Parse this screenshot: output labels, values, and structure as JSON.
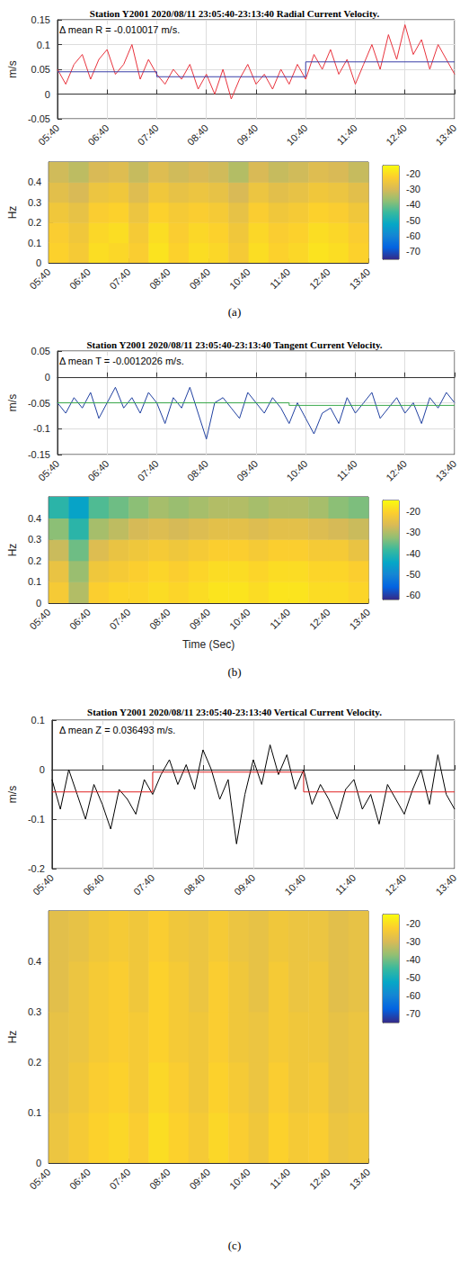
{
  "chart_data": [
    {
      "type": "line",
      "title": "Station Y2001 2020/08/11 23:05:40-23:13:40 Radial Current Velocity.",
      "annotation": "Δ mean R = -0.010017 m/s.",
      "ylabel": "m/s",
      "grid": true,
      "xlim": [
        0,
        480
      ],
      "xticks": [
        {
          "value": 0,
          "label": "05:40"
        },
        {
          "value": 60,
          "label": "06:40"
        },
        {
          "value": 120,
          "label": "07:40"
        },
        {
          "value": 180,
          "label": "08:40"
        },
        {
          "value": 240,
          "label": "09:40"
        },
        {
          "value": 300,
          "label": "10:40"
        },
        {
          "value": 360,
          "label": "11:40"
        },
        {
          "value": 420,
          "label": "12:40"
        },
        {
          "value": 480,
          "label": "13:40"
        }
      ],
      "ylim": [
        -0.05,
        0.15
      ],
      "yticks": [
        -0.05,
        0,
        0.05,
        0.1,
        0.15
      ],
      "series": [
        {
          "color": "#e8323c",
          "x": [
            0,
            10,
            20,
            30,
            40,
            50,
            60,
            70,
            80,
            90,
            100,
            110,
            120,
            130,
            140,
            150,
            160,
            170,
            180,
            190,
            200,
            210,
            220,
            230,
            240,
            250,
            260,
            270,
            280,
            290,
            300,
            310,
            320,
            330,
            340,
            350,
            360,
            370,
            380,
            390,
            400,
            410,
            420,
            430,
            440,
            450,
            460,
            470,
            480
          ],
          "values": [
            0.05,
            0.02,
            0.06,
            0.08,
            0.03,
            0.07,
            0.09,
            0.04,
            0.06,
            0.1,
            0.03,
            0.07,
            0.04,
            0.02,
            0.05,
            0.03,
            0.06,
            0.01,
            0.04,
            0,
            0.05,
            -0.01,
            0.03,
            0.06,
            0.02,
            0.04,
            0.01,
            0.05,
            0.02,
            0.06,
            0.03,
            0.08,
            0.05,
            0.09,
            0.04,
            0.07,
            0.02,
            0.06,
            0.1,
            0.05,
            0.12,
            0.07,
            0.14,
            0.08,
            0.11,
            0.05,
            0.1,
            0.07,
            0.04
          ]
        },
        {
          "color": "#3a3fa8",
          "x": [
            0,
            120,
            120,
            300,
            300,
            480
          ],
          "values": [
            0.045,
            0.045,
            0.035,
            0.035,
            0.065,
            0.065
          ]
        }
      ]
    },
    {
      "type": "heatmap",
      "ylabel": "Hz",
      "caption": "(a)",
      "xlim": [
        0,
        480
      ],
      "xticks": [
        {
          "value": 0,
          "label": "05:40"
        },
        {
          "value": 60,
          "label": "06:40"
        },
        {
          "value": 120,
          "label": "07:40"
        },
        {
          "value": 180,
          "label": "08:40"
        },
        {
          "value": 240,
          "label": "09:40"
        },
        {
          "value": 300,
          "label": "10:40"
        },
        {
          "value": 360,
          "label": "11:40"
        },
        {
          "value": 420,
          "label": "12:40"
        },
        {
          "value": 480,
          "label": "13:40"
        }
      ],
      "ylim": [
        0,
        0.5
      ],
      "yticks": [
        0,
        0.1,
        0.2,
        0.3,
        0.4
      ],
      "x_edges": [
        0,
        30,
        60,
        90,
        120,
        150,
        180,
        210,
        240,
        270,
        300,
        330,
        360,
        390,
        420,
        450,
        480
      ],
      "y_edges": [
        0,
        0.1,
        0.2,
        0.3,
        0.4,
        0.5
      ],
      "cells": [
        [
          -22,
          -24,
          -20,
          -21,
          -23,
          -19,
          -22,
          -20,
          -21,
          -24,
          -20,
          -22,
          -21,
          -19,
          -20,
          -22
        ],
        [
          -23,
          -25,
          -21,
          -20,
          -24,
          -20,
          -23,
          -21,
          -22,
          -25,
          -21,
          -23,
          -22,
          -20,
          -21,
          -23
        ],
        [
          -25,
          -27,
          -23,
          -22,
          -26,
          -22,
          -24,
          -23,
          -24,
          -27,
          -23,
          -25,
          -24,
          -22,
          -23,
          -25
        ],
        [
          -28,
          -30,
          -26,
          -25,
          -29,
          -25,
          -27,
          -26,
          -27,
          -30,
          -26,
          -28,
          -27,
          -25,
          -26,
          -28
        ],
        [
          -31,
          -33,
          -30,
          -29,
          -32,
          -29,
          -31,
          -30,
          -31,
          -34,
          -30,
          -32,
          -31,
          -29,
          -30,
          -32
        ]
      ],
      "colorbar": {
        "range": [
          -75,
          -15
        ],
        "ticks": [
          -70,
          -60,
          -50,
          -40,
          -30,
          -20
        ]
      }
    },
    {
      "type": "line",
      "title": "Station Y2001 2020/08/11 23:05:40-23:13:40 Tangent Current Velocity.",
      "annotation": "Δ mean T = -0.0012026 m/s.",
      "ylabel": "m/s",
      "grid": true,
      "xlim": [
        0,
        480
      ],
      "xticks": [
        {
          "value": 0,
          "label": "05:40"
        },
        {
          "value": 60,
          "label": "06:40"
        },
        {
          "value": 120,
          "label": "07:40"
        },
        {
          "value": 180,
          "label": "08:40"
        },
        {
          "value": 240,
          "label": "09:40"
        },
        {
          "value": 300,
          "label": "10:40"
        },
        {
          "value": 360,
          "label": "11:40"
        },
        {
          "value": 420,
          "label": "12:40"
        },
        {
          "value": 480,
          "label": "13:40"
        }
      ],
      "ylim": [
        -0.15,
        0.05
      ],
      "yticks": [
        -0.15,
        -0.1,
        -0.05,
        0,
        0.05
      ],
      "series": [
        {
          "color": "#2040a0",
          "x": [
            0,
            10,
            20,
            30,
            40,
            50,
            60,
            70,
            80,
            90,
            100,
            110,
            120,
            130,
            140,
            150,
            160,
            170,
            180,
            190,
            200,
            210,
            220,
            230,
            240,
            250,
            260,
            270,
            280,
            290,
            300,
            310,
            320,
            330,
            340,
            350,
            360,
            370,
            380,
            390,
            400,
            410,
            420,
            430,
            440,
            450,
            460,
            470,
            480
          ],
          "values": [
            -0.05,
            -0.07,
            -0.04,
            -0.06,
            -0.03,
            -0.08,
            -0.05,
            -0.02,
            -0.06,
            -0.04,
            -0.07,
            -0.03,
            -0.05,
            -0.09,
            -0.04,
            -0.06,
            -0.02,
            -0.07,
            -0.12,
            -0.05,
            -0.04,
            -0.06,
            -0.08,
            -0.03,
            -0.05,
            -0.07,
            -0.04,
            -0.06,
            -0.09,
            -0.05,
            -0.08,
            -0.11,
            -0.07,
            -0.06,
            -0.09,
            -0.04,
            -0.07,
            -0.05,
            -0.03,
            -0.08,
            -0.06,
            -0.04,
            -0.07,
            -0.05,
            -0.09,
            -0.04,
            -0.06,
            -0.03,
            -0.05
          ]
        },
        {
          "color": "#3aa84a",
          "x": [
            0,
            280,
            280,
            480
          ],
          "values": [
            -0.05,
            -0.05,
            -0.055,
            -0.055
          ]
        }
      ]
    },
    {
      "type": "heatmap",
      "ylabel": "Hz",
      "xlabel": "Time (Sec)",
      "caption": "(b)",
      "xlim": [
        0,
        480
      ],
      "xticks": [
        {
          "value": 0,
          "label": "05:40"
        },
        {
          "value": 60,
          "label": "06:40"
        },
        {
          "value": 120,
          "label": "07:40"
        },
        {
          "value": 180,
          "label": "08:40"
        },
        {
          "value": 240,
          "label": "09:40"
        },
        {
          "value": 300,
          "label": "10:40"
        },
        {
          "value": 360,
          "label": "11:40"
        },
        {
          "value": 420,
          "label": "12:40"
        },
        {
          "value": 480,
          "label": "13:40"
        }
      ],
      "ylim": [
        0,
        0.5
      ],
      "yticks": [
        0,
        0.1,
        0.2,
        0.3,
        0.4
      ],
      "x_edges": [
        0,
        30,
        60,
        90,
        120,
        150,
        180,
        210,
        240,
        270,
        300,
        330,
        360,
        390,
        420,
        450,
        480
      ],
      "y_edges": [
        0,
        0.1,
        0.2,
        0.3,
        0.4,
        0.5
      ],
      "cells": [
        [
          -22,
          -30,
          -21,
          -20,
          -20,
          -19,
          -20,
          -19,
          -18,
          -18,
          -19,
          -18,
          -18,
          -19,
          -19,
          -20
        ],
        [
          -24,
          -32,
          -23,
          -22,
          -21,
          -20,
          -21,
          -20,
          -19,
          -19,
          -20,
          -19,
          -19,
          -20,
          -20,
          -21
        ],
        [
          -28,
          -35,
          -26,
          -24,
          -23,
          -22,
          -23,
          -22,
          -21,
          -21,
          -22,
          -21,
          -21,
          -22,
          -22,
          -24
        ],
        [
          -33,
          -40,
          -31,
          -29,
          -27,
          -26,
          -27,
          -26,
          -25,
          -25,
          -26,
          -25,
          -25,
          -26,
          -27,
          -28
        ],
        [
          -40,
          -45,
          -37,
          -35,
          -33,
          -31,
          -32,
          -31,
          -30,
          -30,
          -31,
          -30,
          -30,
          -31,
          -33,
          -34
        ]
      ],
      "colorbar": {
        "range": [
          -62,
          -15
        ],
        "ticks": [
          -60,
          -50,
          -40,
          -30,
          -20
        ]
      }
    },
    {
      "type": "line",
      "title": "Station Y2001 2020/08/11 23:05:40-23:13:40 Vertical Current Velocity.",
      "annotation": "Δ mean Z = 0.036493 m/s.",
      "ylabel": "m/s",
      "grid": true,
      "xlim": [
        0,
        480
      ],
      "xticks": [
        {
          "value": 0,
          "label": "05:40"
        },
        {
          "value": 60,
          "label": "06:40"
        },
        {
          "value": 120,
          "label": "07:40"
        },
        {
          "value": 180,
          "label": "08:40"
        },
        {
          "value": 240,
          "label": "09:40"
        },
        {
          "value": 300,
          "label": "10:40"
        },
        {
          "value": 360,
          "label": "11:40"
        },
        {
          "value": 420,
          "label": "12:40"
        },
        {
          "value": 480,
          "label": "13:40"
        }
      ],
      "ylim": [
        -0.2,
        0.1
      ],
      "yticks": [
        -0.2,
        -0.1,
        0,
        0.1
      ],
      "series": [
        {
          "color": "#000000",
          "x": [
            0,
            10,
            20,
            30,
            40,
            50,
            60,
            70,
            80,
            90,
            100,
            110,
            120,
            130,
            140,
            150,
            160,
            170,
            180,
            190,
            200,
            210,
            220,
            230,
            240,
            250,
            260,
            270,
            280,
            290,
            300,
            310,
            320,
            330,
            340,
            350,
            360,
            370,
            380,
            390,
            400,
            410,
            420,
            430,
            440,
            450,
            460,
            470,
            480
          ],
          "values": [
            -0.02,
            -0.08,
            0,
            -0.05,
            -0.1,
            -0.03,
            -0.07,
            -0.12,
            -0.04,
            -0.06,
            -0.09,
            -0.02,
            -0.05,
            -0.01,
            0.02,
            -0.03,
            0.01,
            -0.04,
            0.04,
            0,
            -0.06,
            -0.02,
            -0.15,
            -0.05,
            0.02,
            -0.03,
            0.05,
            -0.01,
            0.03,
            -0.04,
            0,
            -0.07,
            -0.03,
            -0.06,
            -0.1,
            -0.04,
            -0.02,
            -0.08,
            -0.05,
            -0.11,
            -0.03,
            -0.06,
            -0.09,
            -0.04,
            0,
            -0.07,
            0.03,
            -0.05,
            -0.08
          ]
        },
        {
          "color": "#e02020",
          "x": [
            0,
            120,
            120,
            300,
            300,
            480
          ],
          "values": [
            -0.045,
            -0.045,
            -0.005,
            -0.005,
            -0.045,
            -0.045
          ]
        }
      ]
    },
    {
      "type": "heatmap",
      "ylabel": "Hz",
      "caption": "(c)",
      "xlim": [
        0,
        480
      ],
      "xticks": [
        {
          "value": 0,
          "label": "05:40"
        },
        {
          "value": 60,
          "label": "06:40"
        },
        {
          "value": 120,
          "label": "07:40"
        },
        {
          "value": 180,
          "label": "08:40"
        },
        {
          "value": 240,
          "label": "09:40"
        },
        {
          "value": 300,
          "label": "10:40"
        },
        {
          "value": 360,
          "label": "11:40"
        },
        {
          "value": 420,
          "label": "12:40"
        },
        {
          "value": 480,
          "label": "13:40"
        }
      ],
      "ylim": [
        0,
        0.5
      ],
      "yticks": [
        0,
        0.1,
        0.2,
        0.3,
        0.4
      ],
      "x_edges": [
        0,
        30,
        60,
        90,
        120,
        150,
        180,
        210,
        240,
        270,
        300,
        330,
        360,
        390,
        420,
        450,
        480
      ],
      "y_edges": [
        0,
        0.1,
        0.2,
        0.3,
        0.4,
        0.5
      ],
      "cells": [
        [
          -26,
          -24,
          -22,
          -21,
          -23,
          -20,
          -22,
          -24,
          -21,
          -23,
          -25,
          -22,
          -24,
          -23,
          -26,
          -25
        ],
        [
          -27,
          -25,
          -23,
          -22,
          -24,
          -21,
          -23,
          -25,
          -22,
          -24,
          -26,
          -23,
          -25,
          -24,
          -27,
          -26
        ],
        [
          -27,
          -26,
          -24,
          -23,
          -24,
          -22,
          -24,
          -25,
          -23,
          -25,
          -26,
          -24,
          -25,
          -25,
          -27,
          -26
        ],
        [
          -28,
          -26,
          -24,
          -23,
          -25,
          -22,
          -24,
          -26,
          -23,
          -25,
          -27,
          -24,
          -26,
          -25,
          -28,
          -27
        ],
        [
          -28,
          -27,
          -25,
          -24,
          -25,
          -23,
          -25,
          -26,
          -24,
          -26,
          -27,
          -25,
          -26,
          -26,
          -28,
          -27
        ]
      ],
      "colorbar": {
        "range": [
          -75,
          -15
        ],
        "ticks": [
          -70,
          -60,
          -50,
          -40,
          -30,
          -20
        ]
      }
    }
  ]
}
